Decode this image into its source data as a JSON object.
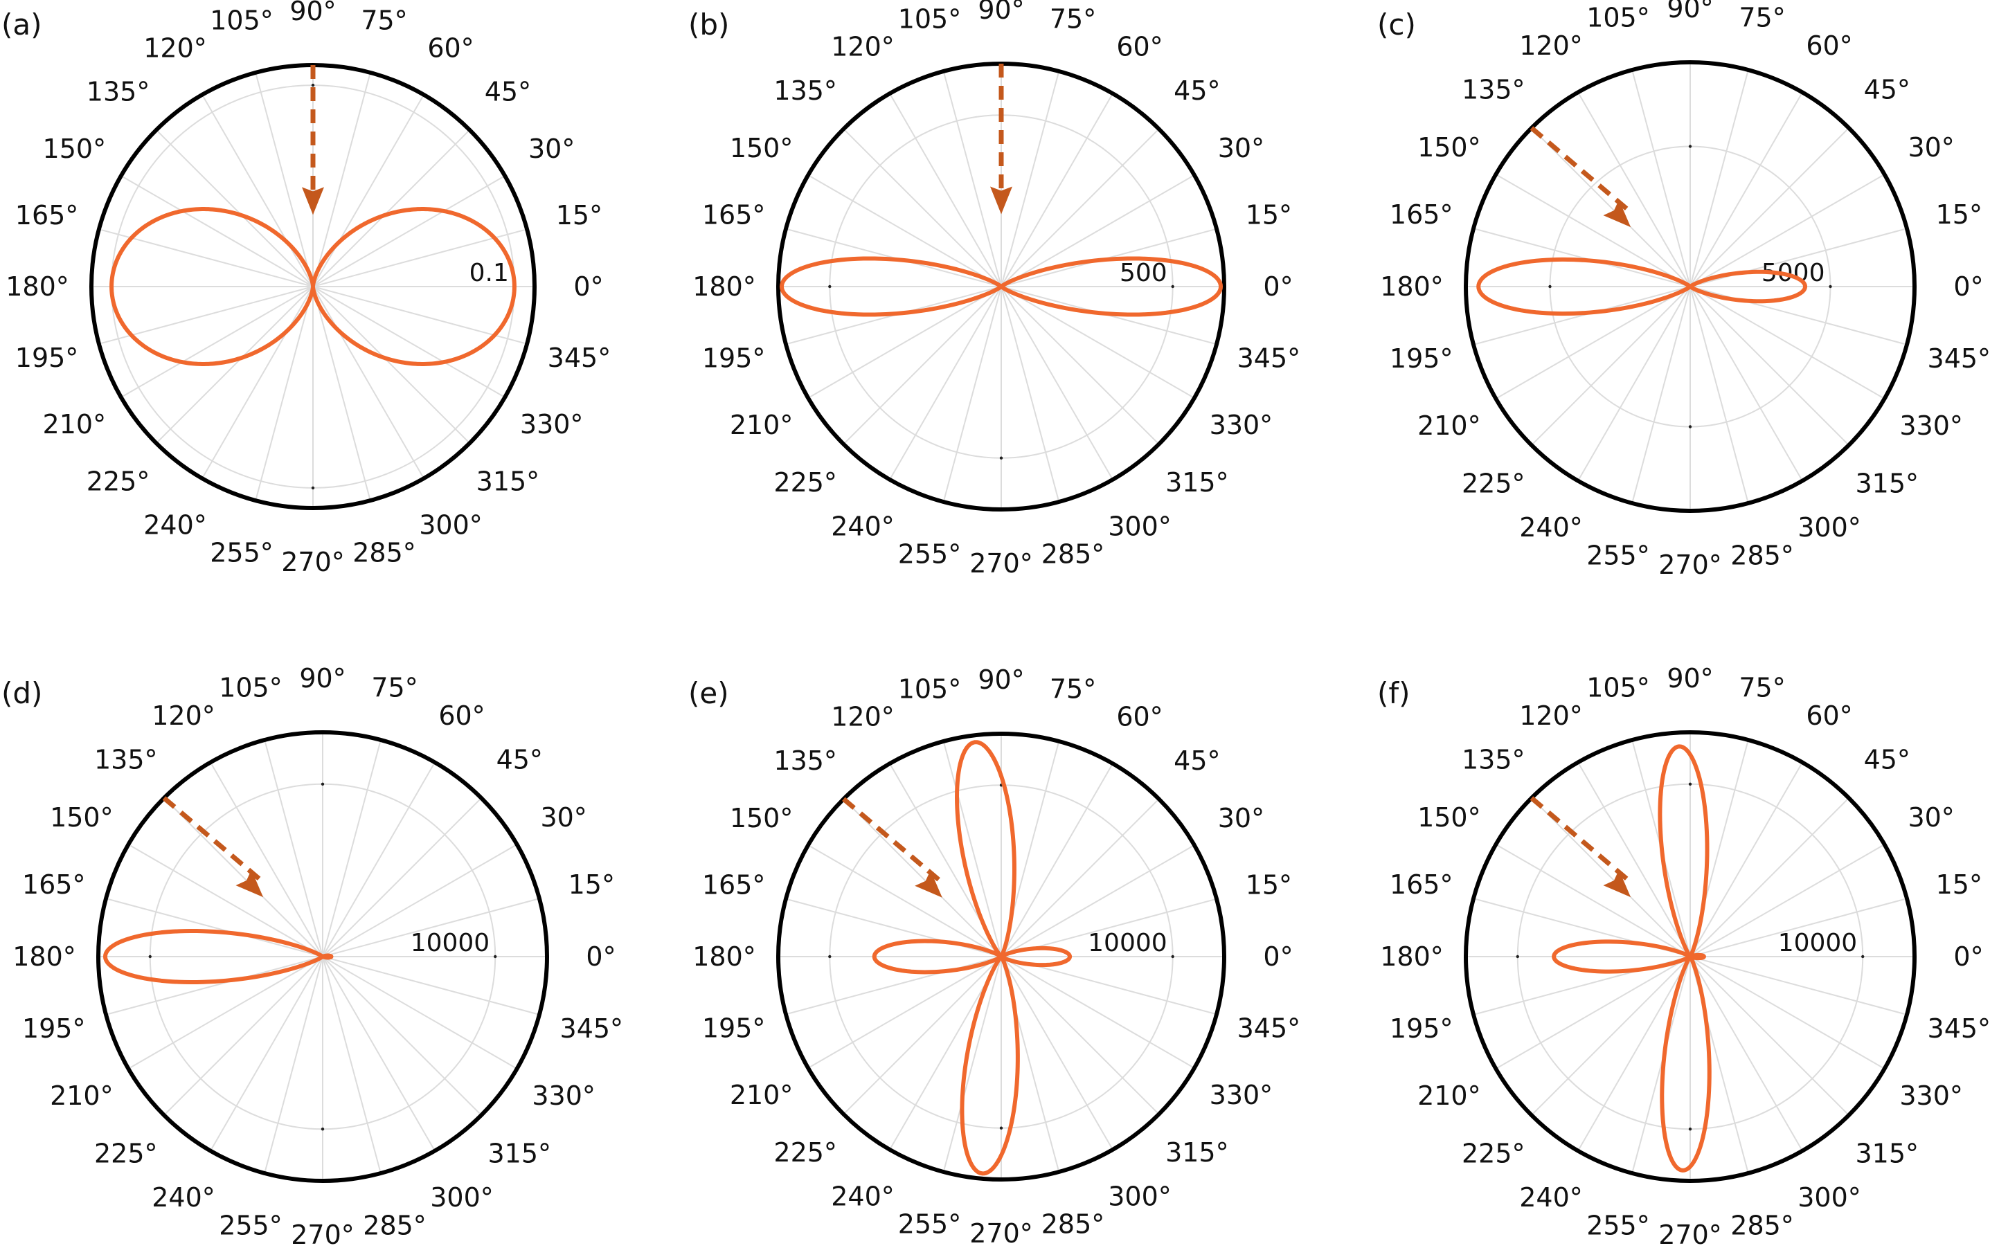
{
  "colors": {
    "pattern": "#f0682d",
    "arrow": "#c4581c",
    "grid": "#dcdcdc",
    "frame": "#000000"
  },
  "angle_labels": [
    "0°",
    "15°",
    "30°",
    "45°",
    "60°",
    "75°",
    "90°",
    "105°",
    "120°",
    "135°",
    "150°",
    "165°",
    "180°",
    "195°",
    "210°",
    "225°",
    "240°",
    "255°",
    "270°",
    "285°",
    "300°",
    "315°",
    "330°",
    "345°"
  ],
  "chart_data": [
    {
      "panel": "(a)",
      "type": "polar-line",
      "theta_step_deg": 15,
      "rings": 2,
      "r_tick_label": "0.1",
      "r_tick_at": 0.1,
      "rmax": 0.11,
      "pattern": {
        "shape": "dipole-lobes",
        "lobe_directions_deg": [
          0,
          180
        ],
        "lobe_magnitudes": [
          0.1,
          0.1
        ],
        "lobe_width": 2
      },
      "incidence_arrow_deg": 90
    },
    {
      "panel": "(b)",
      "type": "polar-line",
      "theta_step_deg": 15,
      "rings": 2,
      "r_tick_label": "500",
      "r_tick_at": 500,
      "rmax": 650,
      "pattern": {
        "shape": "narrow-lobes",
        "lobe_directions_deg": [
          0,
          180
        ],
        "lobe_magnitudes": [
          640,
          640
        ],
        "lobe_width": 22
      },
      "incidence_arrow_deg": 90
    },
    {
      "panel": "(c)",
      "type": "polar-line",
      "theta_step_deg": 15,
      "rings": 2,
      "r_tick_label": "5000",
      "r_tick_at": 5000,
      "rmax": 8000,
      "pattern": {
        "shape": "narrow-lobes",
        "lobe_directions_deg": [
          0,
          180
        ],
        "lobe_magnitudes": [
          4100,
          7550
        ],
        "lobe_width": 22
      },
      "incidence_arrow_deg": 135
    },
    {
      "panel": "(d)",
      "type": "polar-line",
      "theta_step_deg": 15,
      "rings": 2,
      "r_tick_label": "10000",
      "r_tick_at": 10000,
      "rmax": 13000,
      "pattern": {
        "shape": "narrow-lobes",
        "lobe_directions_deg": [
          0,
          180
        ],
        "lobe_magnitudes": [
          500,
          12600
        ],
        "lobe_width": 26
      },
      "incidence_arrow_deg": 135
    },
    {
      "panel": "(e)",
      "type": "polar-line",
      "theta_step_deg": 15,
      "rings": 2,
      "r_tick_label": "10000",
      "r_tick_at": 10000,
      "rmax": 13000,
      "pattern": {
        "shape": "narrow-lobes",
        "lobe_directions_deg": [
          0,
          97,
          180,
          265
        ],
        "lobe_magnitudes": [
          4000,
          12600,
          7400,
          12700
        ],
        "lobe_width": 24
      },
      "incidence_arrow_deg": 135
    },
    {
      "panel": "(f)",
      "type": "polar-line",
      "theta_step_deg": 15,
      "rings": 2,
      "r_tick_label": "10000",
      "r_tick_at": 10000,
      "rmax": 13000,
      "pattern": {
        "shape": "narrow-lobes",
        "lobe_directions_deg": [
          0,
          93,
          180,
          268
        ],
        "lobe_magnitudes": [
          800,
          12200,
          7900,
          12400
        ],
        "lobe_width": 30
      },
      "incidence_arrow_deg": 135
    }
  ]
}
